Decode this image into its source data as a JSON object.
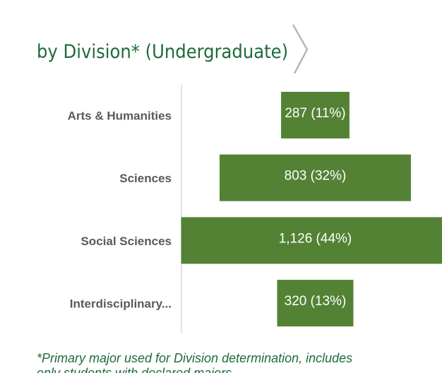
{
  "chart_data": {
    "type": "funnel",
    "title": "by Division* (Undergraduate)",
    "categories": [
      "Arts & Humanities",
      "Sciences",
      "Social Sciences",
      "Interdisciplinary..."
    ],
    "values": [
      287,
      803,
      1126,
      320
    ],
    "value_labels": [
      "287 (11%)",
      "803 (32%)",
      "1,126 (44%)",
      "320 (13%)"
    ],
    "color": "#548235",
    "footnote": [
      "*Primary major used for Division determination, includes",
      "only students with declared majors"
    ]
  }
}
